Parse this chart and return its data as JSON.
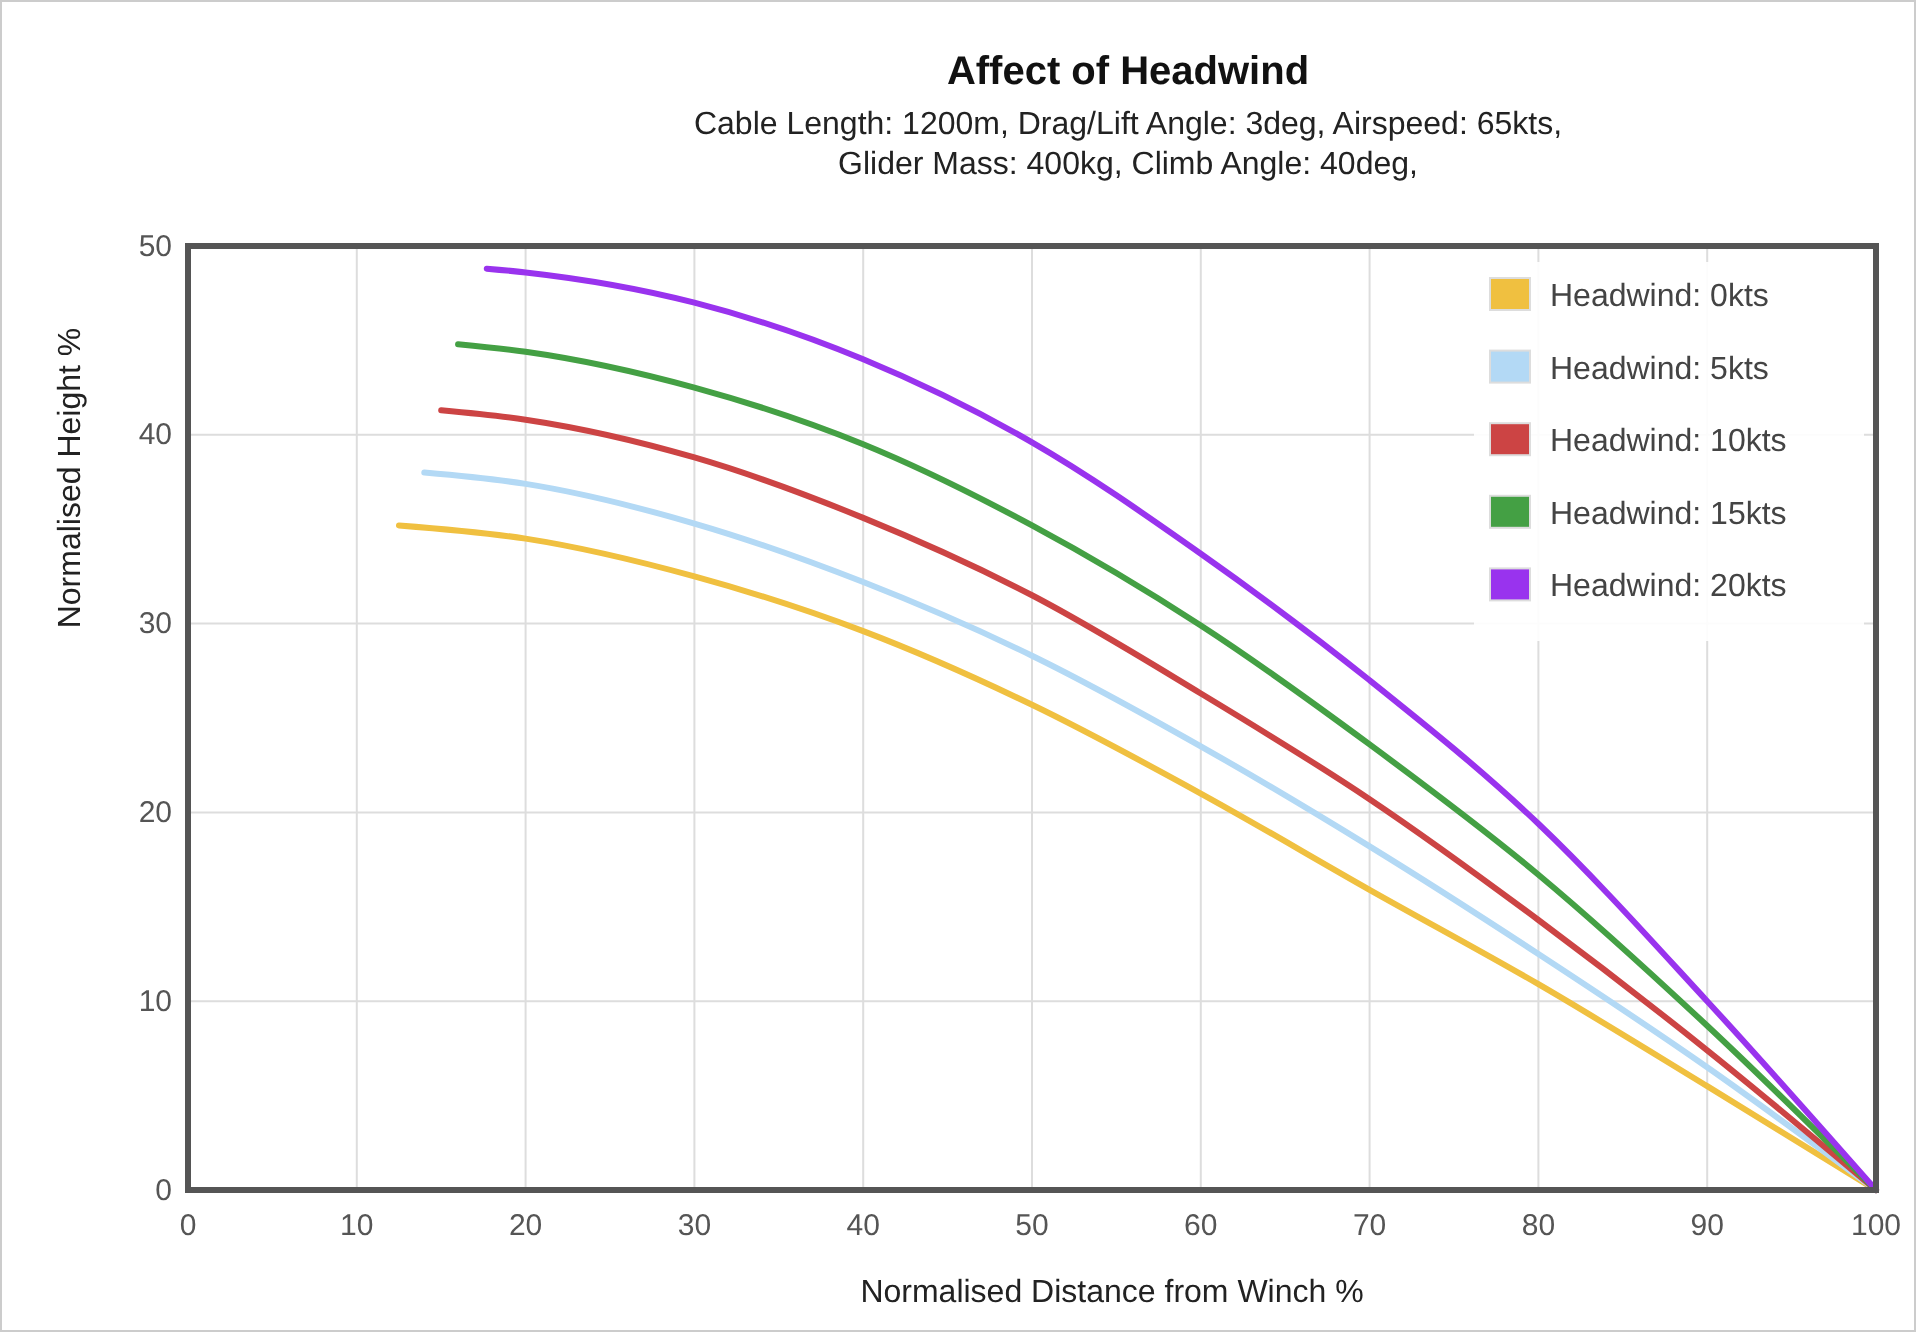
{
  "chart_data": {
    "type": "line",
    "title": "Affect of Headwind",
    "subtitle": "Cable Length: 1200m, Drag/Lift Angle: 3deg, Airspeed: 65kts, Glider Mass: 400kg, Climb Angle: 40deg,",
    "xlabel": "Normalised Distance from Winch %",
    "ylabel": "Normalised Height %",
    "xlim": [
      0,
      100
    ],
    "xticks": [
      0,
      10,
      20,
      30,
      40,
      50,
      60,
      70,
      80,
      90,
      100
    ],
    "ylim": [
      0,
      50
    ],
    "yticks": [
      0,
      10,
      20,
      30,
      40,
      50
    ],
    "grid": true,
    "legend": "top right",
    "marker": "none",
    "line_style": "solid",
    "series": [
      {
        "name": "Headwind: 0kts",
        "color": "#f0c040",
        "x": [
          12.5,
          20,
          30,
          40,
          50,
          60,
          70,
          80,
          90,
          100
        ],
        "values": [
          35.2,
          34.5,
          32.5,
          29.6,
          25.7,
          21.0,
          15.9,
          10.9,
          5.5,
          0
        ]
      },
      {
        "name": "Headwind: 5kts",
        "color": "#b3d9f5",
        "x": [
          14,
          20,
          30,
          40,
          50,
          60,
          70,
          80,
          90,
          100
        ],
        "values": [
          38.0,
          37.4,
          35.3,
          32.2,
          28.3,
          23.5,
          18.2,
          12.5,
          6.5,
          0
        ]
      },
      {
        "name": "Headwind: 10kts",
        "color": "#cc4444",
        "x": [
          15,
          20,
          30,
          40,
          50,
          60,
          70,
          80,
          90,
          100
        ],
        "values": [
          41.3,
          40.8,
          38.8,
          35.6,
          31.5,
          26.3,
          20.7,
          14.3,
          7.4,
          0
        ]
      },
      {
        "name": "Headwind: 15kts",
        "color": "#44a044",
        "x": [
          16,
          20,
          30,
          40,
          50,
          60,
          70,
          80,
          90,
          100
        ],
        "values": [
          44.8,
          44.4,
          42.5,
          39.5,
          35.2,
          29.9,
          23.6,
          16.7,
          8.7,
          0
        ]
      },
      {
        "name": "Headwind: 20kts",
        "color": "#9933ee",
        "x": [
          17.7,
          20,
          30,
          40,
          50,
          60,
          70,
          80,
          90,
          100
        ],
        "values": [
          48.8,
          48.6,
          47.0,
          44.0,
          39.6,
          33.7,
          27.0,
          19.4,
          10.0,
          0
        ]
      }
    ]
  }
}
